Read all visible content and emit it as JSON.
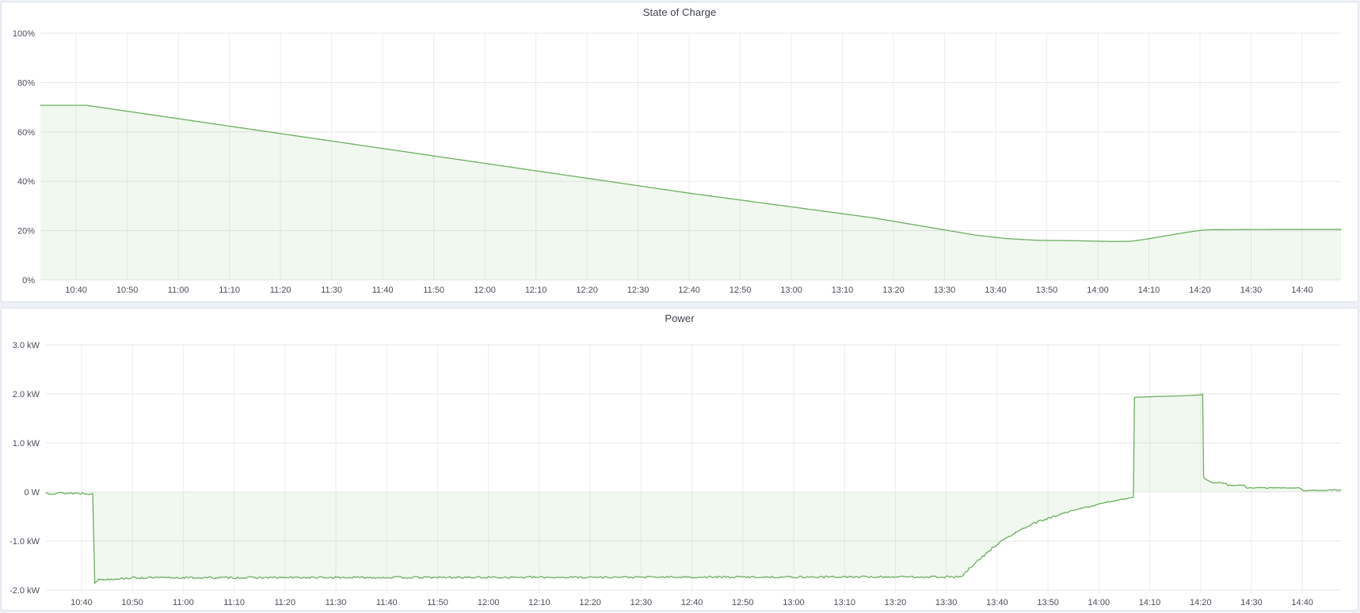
{
  "colors": {
    "line_green": "#6fad63",
    "fill_green": "rgba(115,191,105,0.11)",
    "grid_h": "#e7e7e7",
    "grid_v": "#ededed",
    "axis_text": "#4a4f58",
    "title_text": "#3e424c",
    "panel_bg": "#ffffff",
    "panel_border": "#dce0ea",
    "page_bg": "#edf0f6"
  },
  "chart_data": [
    {
      "type": "area",
      "title": "State of Charge",
      "series_name": "State of Charge",
      "y_min": 0,
      "y_max": 100,
      "baseline": 0,
      "grid": true,
      "legend": "none",
      "y_ticks": [
        {
          "v": 100,
          "label": "100%"
        },
        {
          "v": 80,
          "label": "80%"
        },
        {
          "v": 60,
          "label": "60%"
        },
        {
          "v": 40,
          "label": "40%"
        },
        {
          "v": 20,
          "label": "20%"
        },
        {
          "v": 0,
          "label": "0%"
        }
      ],
      "t_min": 633,
      "t_max": 887.6,
      "x_ticks": [
        {
          "t": 640,
          "label": "10:40"
        },
        {
          "t": 650,
          "label": "10:50"
        },
        {
          "t": 660,
          "label": "11:00"
        },
        {
          "t": 670,
          "label": "11:10"
        },
        {
          "t": 680,
          "label": "11:20"
        },
        {
          "t": 690,
          "label": "11:30"
        },
        {
          "t": 700,
          "label": "11:40"
        },
        {
          "t": 710,
          "label": "11:50"
        },
        {
          "t": 720,
          "label": "12:00"
        },
        {
          "t": 730,
          "label": "12:10"
        },
        {
          "t": 740,
          "label": "12:20"
        },
        {
          "t": 750,
          "label": "12:30"
        },
        {
          "t": 760,
          "label": "12:40"
        },
        {
          "t": 770,
          "label": "12:50"
        },
        {
          "t": 780,
          "label": "13:00"
        },
        {
          "t": 790,
          "label": "13:10"
        },
        {
          "t": 800,
          "label": "13:20"
        },
        {
          "t": 810,
          "label": "13:30"
        },
        {
          "t": 820,
          "label": "13:40"
        },
        {
          "t": 830,
          "label": "13:50"
        },
        {
          "t": 840,
          "label": "14:00"
        },
        {
          "t": 850,
          "label": "14:10"
        },
        {
          "t": 860,
          "label": "14:20"
        },
        {
          "t": 870,
          "label": "14:30"
        },
        {
          "t": 880,
          "label": "14:40"
        }
      ],
      "points": [
        [
          633,
          70.8,
          0
        ],
        [
          642,
          70.8,
          0
        ],
        [
          700,
          53.3,
          0
        ],
        [
          760,
          35.2,
          0
        ],
        [
          796,
          25.2,
          0
        ],
        [
          810,
          20.3,
          0
        ],
        [
          816,
          18.2,
          0
        ],
        [
          822,
          16.8,
          0
        ],
        [
          828,
          16.1,
          0
        ],
        [
          836,
          15.9,
          0
        ],
        [
          843,
          15.6,
          0
        ],
        [
          846.5,
          15.7,
          0
        ],
        [
          849,
          16.4,
          0
        ],
        [
          853,
          17.8,
          0
        ],
        [
          857,
          19.2,
          0
        ],
        [
          860,
          20.1,
          0
        ],
        [
          862,
          20.4,
          0
        ],
        [
          875,
          20.5,
          0
        ],
        [
          887.6,
          20.5,
          0
        ]
      ]
    },
    {
      "type": "area",
      "title": "Power",
      "series_name": "Power",
      "y_min": -2,
      "y_max": 3,
      "baseline": 0,
      "grid": true,
      "legend": "none",
      "y_ticks": [
        {
          "v": 3,
          "label": "3.0 kW"
        },
        {
          "v": 2,
          "label": "2.0 kW"
        },
        {
          "v": 1,
          "label": "1.0 kW"
        },
        {
          "v": 0,
          "label": "0 W"
        },
        {
          "v": -1,
          "label": "-1.0 kW"
        },
        {
          "v": -2,
          "label": "-2.0 kW"
        }
      ],
      "t_min": 633,
      "t_max": 887.6,
      "x_ticks": [
        {
          "t": 640,
          "label": "10:40"
        },
        {
          "t": 650,
          "label": "10:50"
        },
        {
          "t": 660,
          "label": "11:00"
        },
        {
          "t": 670,
          "label": "11:10"
        },
        {
          "t": 680,
          "label": "11:20"
        },
        {
          "t": 690,
          "label": "11:30"
        },
        {
          "t": 700,
          "label": "11:40"
        },
        {
          "t": 710,
          "label": "11:50"
        },
        {
          "t": 720,
          "label": "12:00"
        },
        {
          "t": 730,
          "label": "12:10"
        },
        {
          "t": 740,
          "label": "12:20"
        },
        {
          "t": 750,
          "label": "12:30"
        },
        {
          "t": 760,
          "label": "12:40"
        },
        {
          "t": 770,
          "label": "12:50"
        },
        {
          "t": 780,
          "label": "13:00"
        },
        {
          "t": 790,
          "label": "13:10"
        },
        {
          "t": 800,
          "label": "13:20"
        },
        {
          "t": 810,
          "label": "13:30"
        },
        {
          "t": 820,
          "label": "13:40"
        },
        {
          "t": 830,
          "label": "13:50"
        },
        {
          "t": 840,
          "label": "14:00"
        },
        {
          "t": 850,
          "label": "14:10"
        },
        {
          "t": 860,
          "label": "14:20"
        },
        {
          "t": 870,
          "label": "14:30"
        },
        {
          "t": 880,
          "label": "14:40"
        }
      ],
      "points": [
        [
          633,
          -0.02,
          0.025
        ],
        [
          642.2,
          -0.03,
          0
        ],
        [
          642.6,
          -1.86,
          0
        ],
        [
          643.4,
          -1.79,
          0.02
        ],
        [
          650,
          -1.75,
          0.02
        ],
        [
          813,
          -1.73,
          0.02
        ],
        [
          814.5,
          -1.57,
          0.025
        ],
        [
          816,
          -1.43,
          0.025
        ],
        [
          817.5,
          -1.29,
          0.025
        ],
        [
          819,
          -1.15,
          0.025
        ],
        [
          820.5,
          -1.03,
          0.022
        ],
        [
          822,
          -0.93,
          0.022
        ],
        [
          824,
          -0.81,
          0.022
        ],
        [
          826,
          -0.7,
          0.02
        ],
        [
          828,
          -0.61,
          0.02
        ],
        [
          830,
          -0.54,
          0.018
        ],
        [
          832,
          -0.47,
          0.018
        ],
        [
          834,
          -0.41,
          0.016
        ],
        [
          836,
          -0.35,
          0.016
        ],
        [
          838,
          -0.3,
          0.014
        ],
        [
          840,
          -0.25,
          0.014
        ],
        [
          842,
          -0.2,
          0.012
        ],
        [
          844,
          -0.16,
          0.012
        ],
        [
          846,
          -0.12,
          0.01
        ],
        [
          846.8,
          -0.1,
          0
        ],
        [
          847.0,
          1.93,
          0
        ],
        [
          852,
          1.95,
          0
        ],
        [
          857,
          1.962,
          0
        ],
        [
          860.0,
          1.98,
          0
        ],
        [
          860.4,
          2.0,
          0
        ],
        [
          860.6,
          0.3,
          0
        ],
        [
          861.2,
          0.24,
          0.015
        ],
        [
          862.5,
          0.19,
          0.012
        ],
        [
          865,
          0.18,
          0.012
        ],
        [
          865.4,
          0.135,
          0.01
        ],
        [
          868.6,
          0.135,
          0.01
        ],
        [
          869.0,
          0.085,
          0.008
        ],
        [
          879.6,
          0.082,
          0.008
        ],
        [
          880.0,
          0.03,
          0.012
        ],
        [
          887.6,
          0.04,
          0.012
        ]
      ]
    }
  ]
}
